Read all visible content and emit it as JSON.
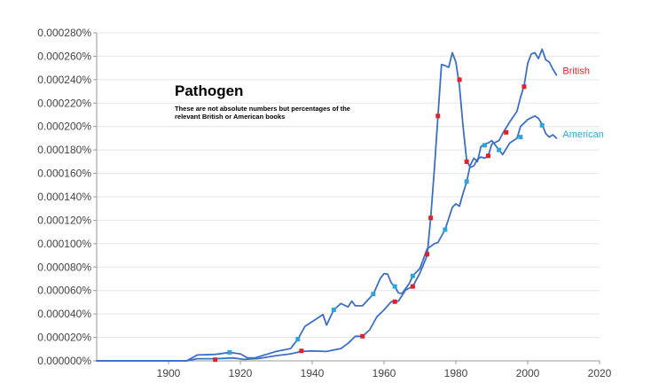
{
  "chart_data": {
    "type": "line",
    "title": "Pathogen",
    "subtitle": "These are not absolute numbers but percentages of the relevant British or American books",
    "xlabel": "",
    "ylabel": "",
    "xlim": [
      1880,
      2020
    ],
    "ylim": [
      0,
      0.00028
    ],
    "xticks": [
      1900,
      1920,
      1940,
      1960,
      1980,
      2000,
      2020
    ],
    "yticks": [
      0,
      2e-05,
      4e-05,
      6e-05,
      8e-05,
      0.0001,
      0.00012,
      0.00014,
      0.00016,
      0.00018,
      0.0002,
      0.00022,
      0.00024,
      0.00026,
      0.00028
    ],
    "ytick_labels": [
      "0.000000%",
      "0.000020%",
      "0.000040%",
      "0.000060%",
      "0.000080%",
      "0.000100%",
      "0.000120%",
      "0.000140%",
      "0.000160%",
      "0.000180%",
      "0.000200%",
      "0.000220%",
      "0.000240%",
      "0.000260%",
      "0.000280%"
    ],
    "grid": "horizontal",
    "legend": "inline labels at right end of each line",
    "series": [
      {
        "name": "British",
        "color": "#3c6fc8",
        "marker_color": "#e0202a",
        "points": [
          [
            1880,
            0
          ],
          [
            1905,
            0
          ],
          [
            1908,
            1.8e-06
          ],
          [
            1913,
            1.8e-06
          ],
          [
            1918,
            2.5e-06
          ],
          [
            1921,
            1.2e-06
          ],
          [
            1925,
            2e-06
          ],
          [
            1930,
            4.5e-06
          ],
          [
            1934,
            6e-06
          ],
          [
            1937,
            8e-06
          ],
          [
            1940,
            8.5e-06
          ],
          [
            1944,
            8e-06
          ],
          [
            1948,
            1.05e-05
          ],
          [
            1950,
            1.5e-05
          ],
          [
            1952,
            2.1e-05
          ],
          [
            1954,
            2.1e-05
          ],
          [
            1956,
            2.65e-05
          ],
          [
            1958,
            3.75e-05
          ],
          [
            1960,
            4.35e-05
          ],
          [
            1962,
            5.05e-05
          ],
          [
            1964,
            5.1e-05
          ],
          [
            1966,
            6.05e-05
          ],
          [
            1968,
            6.35e-05
          ],
          [
            1970,
            7.5e-05
          ],
          [
            1972,
            9e-05
          ],
          [
            1973,
            0.000122
          ],
          [
            1974,
            0.000163
          ],
          [
            1975,
            0.000209
          ],
          [
            1976,
            0.000253
          ],
          [
            1977,
            0.000252
          ],
          [
            1978,
            0.0002505
          ],
          [
            1979,
            0.000263
          ],
          [
            1980,
            0.000255
          ],
          [
            1981,
            0.000235
          ],
          [
            1982,
            0.0002
          ],
          [
            1983,
            0.000171
          ],
          [
            1984,
            0.000165
          ],
          [
            1985,
            0.0001665
          ],
          [
            1986,
            0.000172
          ],
          [
            1987,
            0.000174
          ],
          [
            1988,
            0.000173
          ],
          [
            1989,
            0.000175
          ],
          [
            1990,
            0.000185
          ],
          [
            1992,
            0.000188
          ],
          [
            1993,
            0.000194
          ],
          [
            1995,
            0.000204
          ],
          [
            1997,
            0.000213
          ],
          [
            1998,
            0.000225
          ],
          [
            1999,
            0.000235
          ],
          [
            2000,
            0.000254
          ],
          [
            2001,
            0.000262
          ],
          [
            2002,
            0.000263
          ],
          [
            2003,
            0.000258
          ],
          [
            2004,
            0.000266
          ],
          [
            2005,
            0.000257
          ],
          [
            2006,
            0.000255
          ],
          [
            2007,
            0.000249
          ],
          [
            2008,
            0.000244
          ]
        ],
        "markers": [
          [
            1913,
            1e-06
          ],
          [
            1937,
            8.5e-06
          ],
          [
            1954,
            2.1e-05
          ],
          [
            1963,
            5.05e-05
          ],
          [
            1968,
            6.35e-05
          ],
          [
            1972,
            9.1e-05
          ],
          [
            1973,
            0.000122
          ],
          [
            1975,
            0.000209
          ],
          [
            1981,
            0.00024
          ],
          [
            1983,
            0.00017
          ],
          [
            1989,
            0.000175
          ],
          [
            1994,
            0.000195
          ],
          [
            1999,
            0.000234
          ]
        ]
      },
      {
        "name": "American",
        "color": "#3c6fc8",
        "marker_color": "#2aa7d8",
        "points": [
          [
            1880,
            0
          ],
          [
            1905,
            0
          ],
          [
            1908,
            5e-06
          ],
          [
            1913,
            5.5e-06
          ],
          [
            1917,
            7.2e-06
          ],
          [
            1920,
            6e-06
          ],
          [
            1922,
            2.5e-06
          ],
          [
            1924,
            2.5e-06
          ],
          [
            1930,
            8e-06
          ],
          [
            1934,
            1.05e-05
          ],
          [
            1936,
            1.85e-05
          ],
          [
            1938,
            2.95e-05
          ],
          [
            1941,
            3.55e-05
          ],
          [
            1943,
            3.95e-05
          ],
          [
            1944,
            3.05e-05
          ],
          [
            1946,
            4.35e-05
          ],
          [
            1948,
            4.9e-05
          ],
          [
            1950,
            4.6e-05
          ],
          [
            1951,
            5.1e-05
          ],
          [
            1952,
            4.7e-05
          ],
          [
            1954,
            4.7e-05
          ],
          [
            1957,
            5.7e-05
          ],
          [
            1959,
            7.05e-05
          ],
          [
            1960,
            7.45e-05
          ],
          [
            1961,
            7.4e-05
          ],
          [
            1962,
            6.65e-05
          ],
          [
            1963,
            6.35e-05
          ],
          [
            1964,
            5.8e-05
          ],
          [
            1965,
            5.75e-05
          ],
          [
            1967,
            6.6e-05
          ],
          [
            1968,
            7.25e-05
          ],
          [
            1970,
            7.9e-05
          ],
          [
            1972,
            9.55e-05
          ],
          [
            1974,
            0.0001
          ],
          [
            1975,
            0.000101
          ],
          [
            1977,
            0.000112
          ],
          [
            1979,
            0.000131
          ],
          [
            1980,
            0.000134
          ],
          [
            1981,
            0.000132
          ],
          [
            1982,
            0.000143
          ],
          [
            1983,
            0.000153
          ],
          [
            1984,
            0.000167
          ],
          [
            1985,
            0.000173
          ],
          [
            1986,
            0.00017
          ],
          [
            1987,
            0.000183
          ],
          [
            1988,
            0.000185
          ],
          [
            1989,
            0.000186
          ],
          [
            1990,
            0.000188
          ],
          [
            1992,
            0.00018
          ],
          [
            1993,
            0.000176
          ],
          [
            1995,
            0.000186
          ],
          [
            1997,
            0.00019
          ],
          [
            1998,
            0.0002
          ],
          [
            2000,
            0.000206
          ],
          [
            2002,
            0.000209
          ],
          [
            2003,
            0.000207
          ],
          [
            2004,
            0.000202
          ],
          [
            2005,
            0.000194
          ],
          [
            2006,
            0.000191
          ],
          [
            2007,
            0.000193
          ],
          [
            2008,
            0.00019
          ]
        ],
        "markers": [
          [
            1917,
            7.2e-06
          ],
          [
            1936,
            1.85e-05
          ],
          [
            1946,
            4.35e-05
          ],
          [
            1957,
            5.7e-05
          ],
          [
            1963,
            6.35e-05
          ],
          [
            1968,
            7.25e-05
          ],
          [
            1977,
            0.000112
          ],
          [
            1983,
            0.000153
          ],
          [
            1988,
            0.000184
          ],
          [
            1992,
            0.00018
          ],
          [
            1998,
            0.000191
          ],
          [
            2004,
            0.000201
          ]
        ]
      }
    ]
  }
}
